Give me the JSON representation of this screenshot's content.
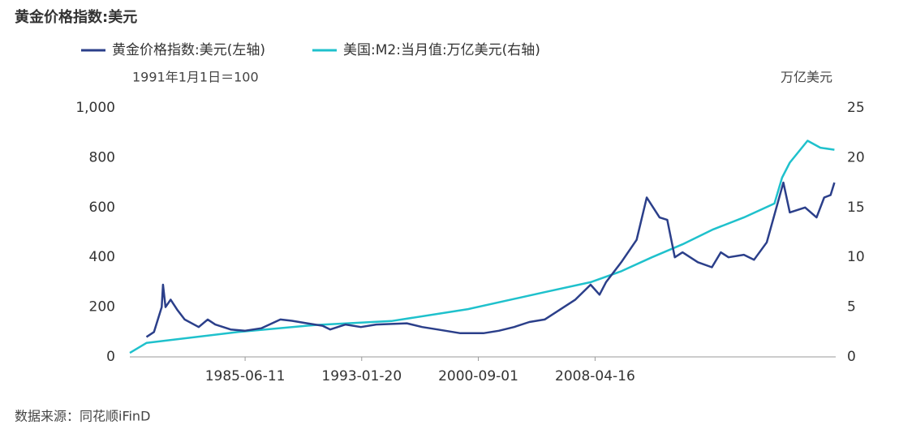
{
  "chart_data": {
    "type": "line",
    "title": "黄金价格指数:美元",
    "subtitle": "1991年1月1日＝100",
    "y2_label": "万亿美元",
    "source": "数据来源：同花顺iFinD",
    "xlim": [
      "1977-12-01",
      "2024-01-01"
    ],
    "xticks": [
      "1985-06-11",
      "1993-01-20",
      "2000-09-01",
      "2008-04-16"
    ],
    "ylim": [
      0,
      1000
    ],
    "yticks": [
      0,
      200,
      400,
      600,
      800,
      {
        "value": 1000,
        "label": "1,000"
      }
    ],
    "y2lim": [
      0,
      25
    ],
    "y2ticks": [
      0,
      5,
      10,
      15,
      20,
      25
    ],
    "legend": "top",
    "grid": false,
    "series": [
      {
        "name": "黄金价格指数:美元(左轴)",
        "color": "#2b3f8a",
        "x": [
          "1979-01-01",
          "1979-07-01",
          "1980-01-01",
          "1980-02-01",
          "1980-04-01",
          "1980-08-01",
          "1981-01-01",
          "1981-07-01",
          "1982-06-01",
          "1983-01-01",
          "1983-07-01",
          "1984-07-01",
          "1985-06-01",
          "1986-07-01",
          "1987-10-01",
          "1988-07-01",
          "1989-07-01",
          "1990-07-01",
          "1991-01-01",
          "1992-01-01",
          "1993-01-01",
          "1994-01-01",
          "1996-01-01",
          "1997-01-01",
          "1998-01-01",
          "1999-07-01",
          "2001-01-01",
          "2002-01-01",
          "2003-01-01",
          "2004-01-01",
          "2005-01-01",
          "2006-01-01",
          "2007-01-01",
          "2008-01-01",
          "2008-08-01",
          "2009-01-01",
          "2010-01-01",
          "2011-01-01",
          "2011-09-01",
          "2012-07-01",
          "2013-01-01",
          "2013-07-01",
          "2014-01-01",
          "2015-01-01",
          "2015-12-01",
          "2016-07-01",
          "2017-01-01",
          "2018-01-01",
          "2018-09-01",
          "2019-07-01",
          "2020-08-01",
          "2021-01-01",
          "2022-01-01",
          "2022-10-01",
          "2023-04-01",
          "2023-09-01",
          "2023-12-01"
        ],
        "values": [
          80,
          100,
          200,
          290,
          200,
          230,
          190,
          150,
          120,
          150,
          130,
          110,
          105,
          115,
          150,
          145,
          135,
          125,
          110,
          130,
          120,
          130,
          135,
          120,
          110,
          95,
          95,
          105,
          120,
          140,
          150,
          190,
          230,
          290,
          250,
          300,
          380,
          470,
          640,
          560,
          550,
          400,
          420,
          380,
          360,
          420,
          400,
          410,
          390,
          460,
          700,
          580,
          600,
          560,
          640,
          650,
          700
        ]
      },
      {
        "name": "美国:M2:当月值:万亿美元(右轴)",
        "color": "#1fc1cc",
        "axis": "y2",
        "x": [
          "1977-12-01",
          "1979-01-01",
          "1985-01-01",
          "1990-01-01",
          "1995-01-01",
          "2000-01-01",
          "2005-01-01",
          "2008-01-01",
          "2010-01-01",
          "2012-01-01",
          "2014-01-01",
          "2016-01-01",
          "2018-01-01",
          "2020-01-01",
          "2020-07-01",
          "2021-01-01",
          "2022-03-01",
          "2023-01-01",
          "2023-12-01"
        ],
        "values": [
          0.4,
          1.4,
          2.5,
          3.2,
          3.6,
          4.8,
          6.5,
          7.5,
          8.6,
          10.0,
          11.3,
          12.8,
          14.0,
          15.4,
          18.0,
          19.5,
          21.7,
          21.0,
          20.8
        ]
      }
    ]
  }
}
